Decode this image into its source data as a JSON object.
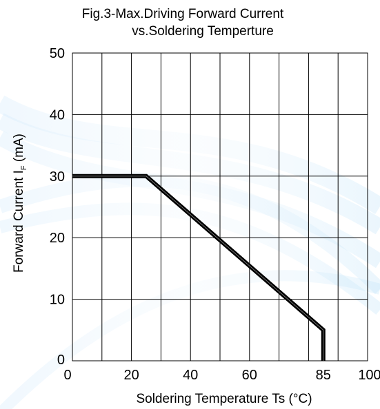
{
  "chart_data": {
    "type": "line",
    "title": [
      "Fig.3-Max.Driving Forward Current",
      "vs.Soldering Temperture"
    ],
    "xlabel": "Soldering Temperature Ts (°C)",
    "ylabel": {
      "main": "Forward Current   I",
      "sub": "F",
      "unit": "(mA)"
    },
    "xlim": [
      0,
      100
    ],
    "ylim": [
      0,
      50
    ],
    "x_gridlines": [
      0,
      10,
      20,
      30,
      40,
      50,
      60,
      70,
      80,
      90,
      100
    ],
    "y_gridlines": [
      0,
      10,
      20,
      30,
      40,
      50
    ],
    "x_ticks": [
      0,
      20,
      40,
      60,
      85,
      100
    ],
    "y_ticks": [
      0,
      10,
      20,
      30,
      40,
      50
    ],
    "grid": true,
    "series": [
      {
        "color": "#000000",
        "points": [
          [
            0,
            30
          ],
          [
            25,
            30
          ],
          [
            85,
            5
          ],
          [
            85,
            0
          ]
        ]
      }
    ]
  },
  "background": {
    "colors": [
      "#cfe8fb",
      "#e6f3fd",
      "#bfe3f9"
    ]
  }
}
